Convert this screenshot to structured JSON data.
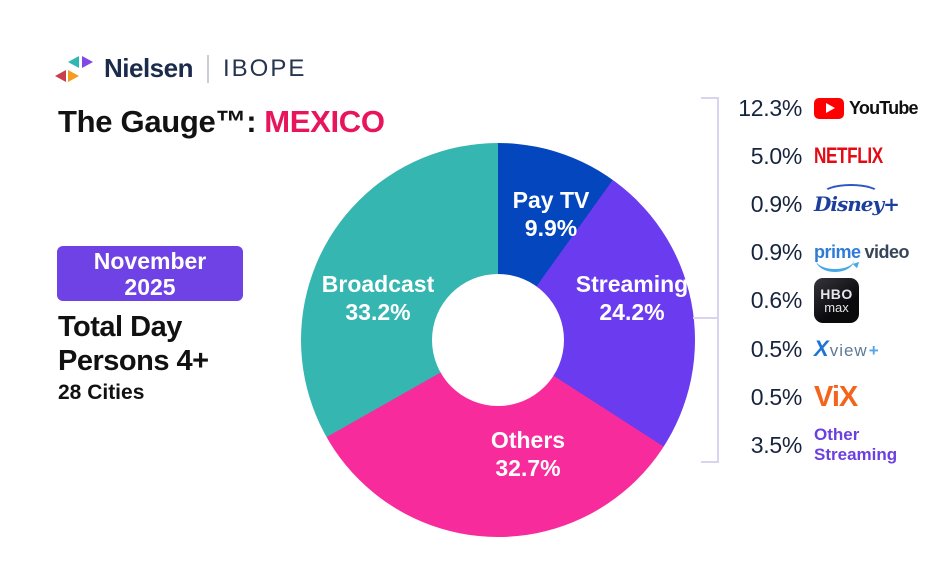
{
  "brand": {
    "name": "Nielsen",
    "partner": "IBOPE"
  },
  "title": {
    "prefix": "The Gauge™:",
    "region": "MEXICO",
    "region_color": "#E8155D"
  },
  "period_badge": {
    "line1": "November",
    "line2": "2025",
    "bg_color": "#6F42E5"
  },
  "audience": {
    "line1": "Total Day",
    "line2": "Persons 4+",
    "line3": "28 Cities"
  },
  "chart_data": {
    "type": "pie",
    "donut": true,
    "title": "The Gauge™: MEXICO",
    "period": "November 2025",
    "start_angle_deg": 0,
    "direction": "clockwise",
    "hole_ratio": 0.33,
    "segments": [
      {
        "label": "Pay TV",
        "value": 9.9,
        "pct_label": "9.9%",
        "color": "#0446BE"
      },
      {
        "label": "Streaming",
        "value": 24.2,
        "pct_label": "24.2%",
        "color": "#6B3BF0"
      },
      {
        "label": "Others",
        "value": 32.7,
        "pct_label": "32.7%",
        "color": "#F72B9B"
      },
      {
        "label": "Broadcast",
        "value": 33.2,
        "pct_label": "33.2%",
        "color": "#35B6B0"
      }
    ],
    "streaming_breakout": {
      "parent": "Streaming",
      "items": [
        {
          "service": "YouTube",
          "value": 12.3,
          "pct_label": "12.3%",
          "logo_text": "YouTube"
        },
        {
          "service": "Netflix",
          "value": 5.0,
          "pct_label": "5.0%",
          "logo_text": "NETFLIX"
        },
        {
          "service": "Disney+",
          "value": 0.9,
          "pct_label": "0.9%",
          "logo_text": "Disney+"
        },
        {
          "service": "Prime Video",
          "value": 0.9,
          "pct_label": "0.9%",
          "logo_word1": "prime",
          "logo_word2": "video"
        },
        {
          "service": "HBO Max",
          "value": 0.6,
          "pct_label": "0.6%",
          "logo_word1": "HBO",
          "logo_word2": "max"
        },
        {
          "service": "Xview+",
          "value": 0.5,
          "pct_label": "0.5%",
          "logo_word1": "X",
          "logo_word2": "view",
          "logo_word3": "+"
        },
        {
          "service": "ViX",
          "value": 0.5,
          "pct_label": "0.5%",
          "logo_text": "ViX"
        },
        {
          "service": "Other Streaming",
          "value": 3.5,
          "pct_label": "3.5%",
          "logo_word1": "Other",
          "logo_word2": "Streaming"
        }
      ]
    }
  },
  "colors": {
    "accent_pink": "#E8155D",
    "badge_purple": "#6F42E5",
    "navy_text": "#17243E",
    "slice_pay_tv": "#0446BE",
    "slice_streaming": "#6B3BF0",
    "slice_others": "#F72B9B",
    "slice_broadcast": "#35B6B0",
    "youtube_red": "#FF0000",
    "netflix_red": "#E50914",
    "disney_blue": "#1C3F9E",
    "prime_blue": "#2E7CD8",
    "vix_orange": "#F4641D",
    "other_streaming_purple": "#6C3FE0",
    "bracket_line": "#D9D3EF"
  }
}
